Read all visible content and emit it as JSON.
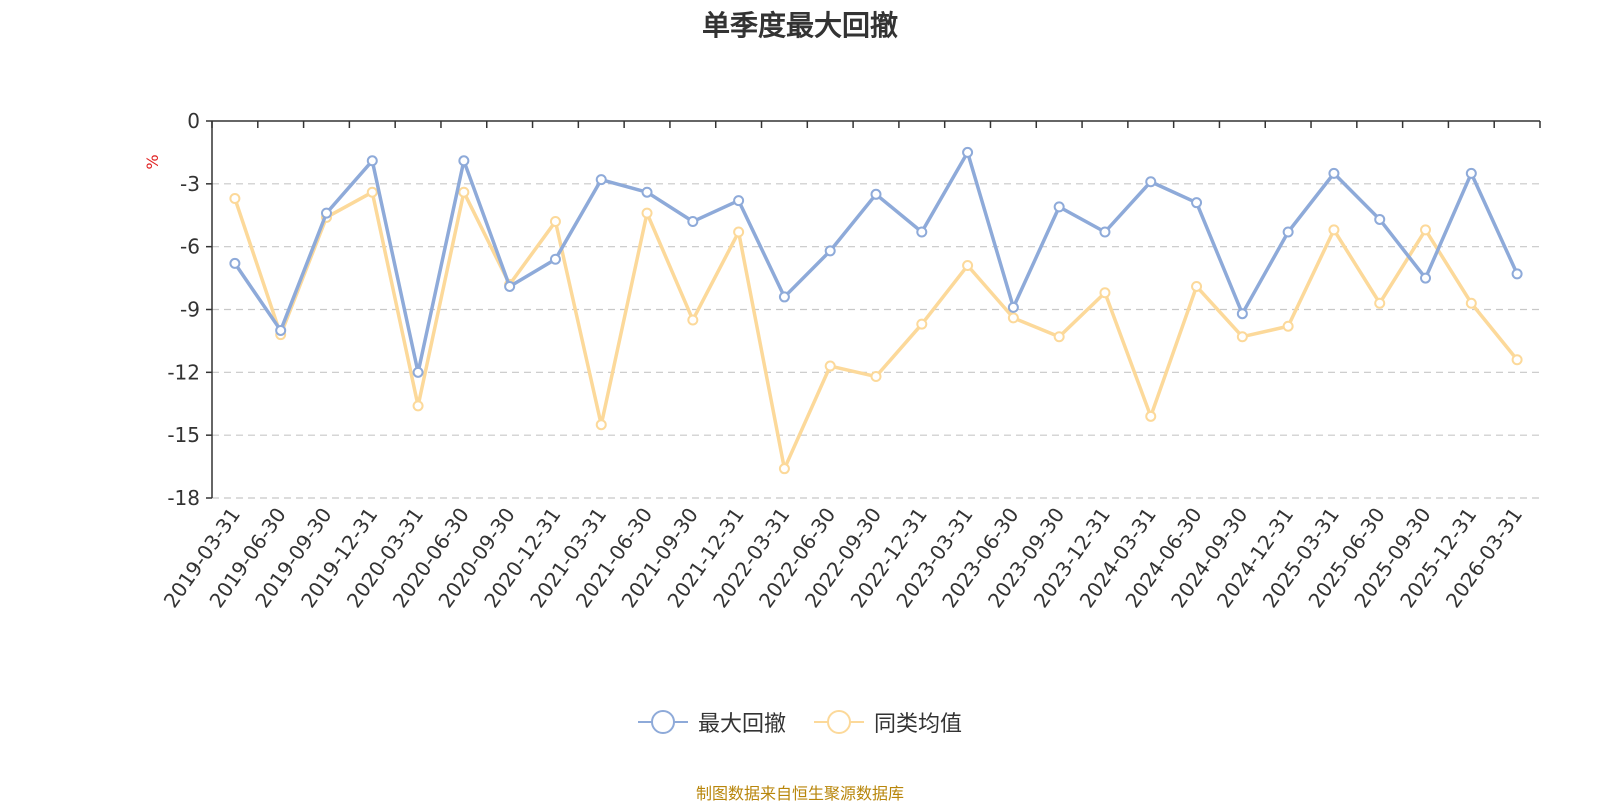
{
  "chart_data": {
    "type": "line",
    "title": "单季度最大回撤",
    "ylabel": "%",
    "ylim": [
      -18,
      0
    ],
    "yticks": [
      0,
      -3,
      -6,
      -9,
      -12,
      -15,
      -18
    ],
    "grid": true,
    "legend_position": "bottom-center",
    "categories": [
      "2019-03-31",
      "2019-06-30",
      "2019-09-30",
      "2019-12-31",
      "2020-03-31",
      "2020-06-30",
      "2020-09-30",
      "2020-12-31",
      "2021-03-31",
      "2021-06-30",
      "2021-09-30",
      "2021-12-31",
      "2022-03-31",
      "2022-06-30",
      "2022-09-30",
      "2022-12-31",
      "2023-03-31",
      "2023-06-30",
      "2023-09-30",
      "2023-12-31",
      "2024-03-31",
      "2024-06-30",
      "2024-09-30",
      "2024-12-31",
      "2025-03-31",
      "2025-06-30",
      "2025-09-30",
      "2025-12-31",
      "2026-03-31"
    ],
    "series": [
      {
        "name": "最大回撤",
        "color": "#8eaad9",
        "values": [
          -6.8,
          -10.0,
          -4.4,
          -1.9,
          -12.0,
          -1.9,
          -7.9,
          -6.6,
          -2.8,
          -3.4,
          -4.8,
          -3.8,
          -8.4,
          -6.2,
          -3.5,
          -5.3,
          -1.5,
          -8.9,
          -4.1,
          -5.3,
          -2.9,
          -3.9,
          -9.2,
          -5.3,
          -2.5,
          -4.7,
          -7.5,
          -2.5,
          -7.3
        ]
      },
      {
        "name": "同类均值",
        "color": "#fcd99a",
        "values": [
          -3.7,
          -10.2,
          -4.6,
          -3.4,
          -13.6,
          -3.4,
          -7.8,
          -4.8,
          -14.5,
          -4.4,
          -9.5,
          -5.3,
          -16.6,
          -11.7,
          -12.2,
          -9.7,
          -6.9,
          -9.4,
          -10.3,
          -8.2,
          -14.1,
          -7.9,
          -10.3,
          -9.8,
          -5.2,
          -8.7,
          -5.2,
          -8.7,
          -11.4
        ]
      }
    ]
  },
  "source_note": "制图数据来自恒生聚源数据库"
}
